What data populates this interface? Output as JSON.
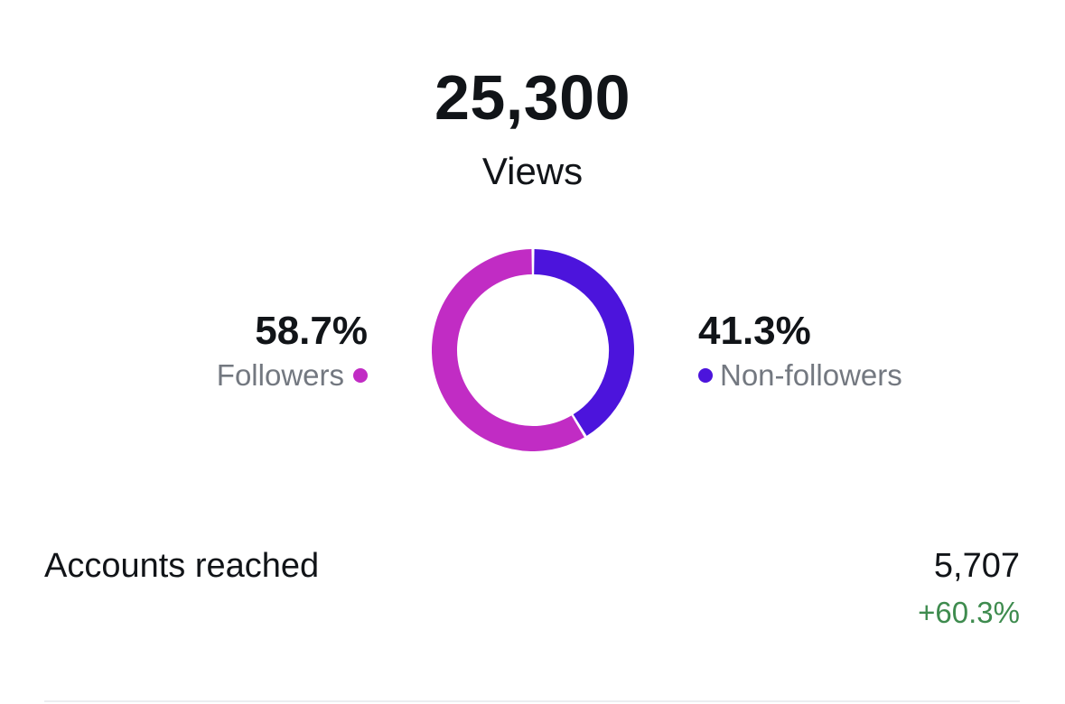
{
  "views": {
    "total": "25,300",
    "label": "Views"
  },
  "breakdown": {
    "followers": {
      "percent_text": "58.7%",
      "label": "Followers",
      "value": 58.7,
      "color": "#C12CC4"
    },
    "non_followers": {
      "percent_text": "41.3%",
      "label": "Non-followers",
      "value": 41.3,
      "color": "#4C14DC"
    }
  },
  "accounts_reached": {
    "label": "Accounts reached",
    "value": "5,707",
    "change": "+60.3%",
    "change_color": "#3E8B4E"
  }
}
